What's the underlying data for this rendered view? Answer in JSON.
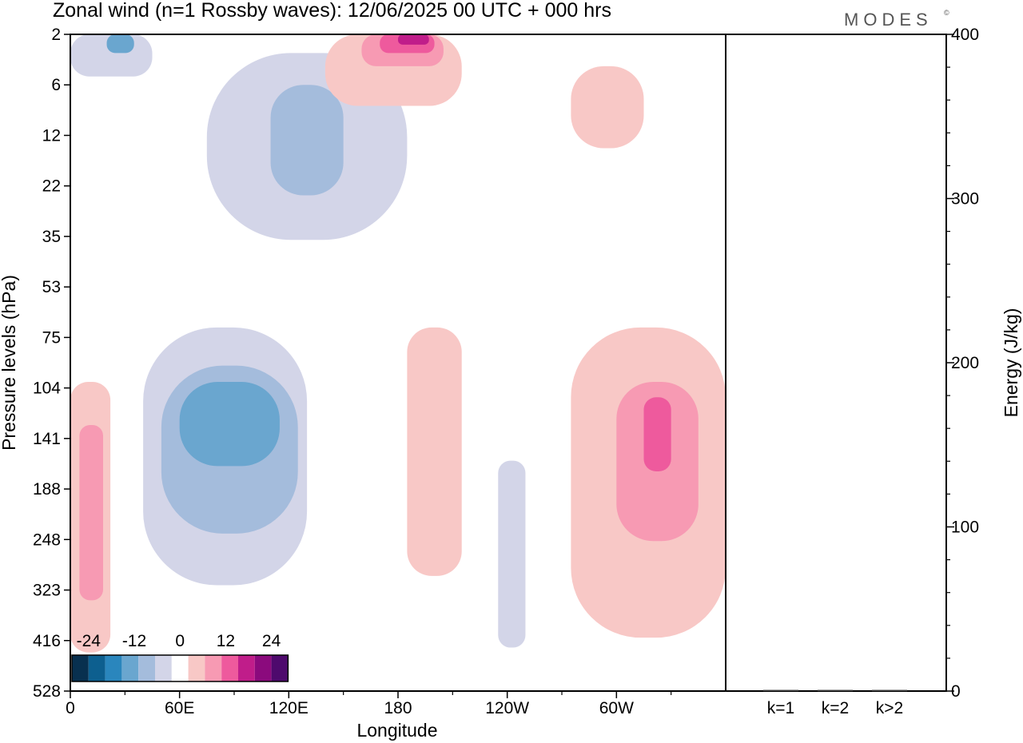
{
  "chart_data": {
    "type": "heatmap",
    "title": "Zonal wind (n=1 Rossby waves):  12/06/2025  00 UTC  + 000 hrs",
    "brand": "MODES",
    "brand_mark": "©",
    "xlabel": "Longitude",
    "ylabel": "Pressure levels (hPa)",
    "y2label": "Energy (J/kg)",
    "x_ticks": [
      "0",
      "60E",
      "120E",
      "180",
      "120W",
      "60W"
    ],
    "y_ticks": [
      "2",
      "6",
      "12",
      "22",
      "35",
      "53",
      "75",
      "104",
      "141",
      "188",
      "248",
      "323",
      "416",
      "528"
    ],
    "y2_ticks": [
      "0",
      "100",
      "200",
      "300",
      "400"
    ],
    "y2lim": [
      0,
      400
    ],
    "legend": {
      "placement": "bottom-left",
      "labels": [
        "-24",
        "-12",
        "0",
        "12",
        "24"
      ],
      "levels": [
        -30,
        -25,
        -20,
        -15,
        -10,
        -5,
        0,
        5,
        10,
        15,
        20,
        25,
        30
      ],
      "colors": [
        "#08304f",
        "#0d5f8f",
        "#2a86bd",
        "#6aa6cf",
        "#a4bcdc",
        "#d3d5e8",
        "#ffffff",
        "#f8c8c6",
        "#f79ab3",
        "#ee5a9d",
        "#c01d8a",
        "#8b0a7d",
        "#4e0a6d"
      ]
    },
    "contour_regions": [
      {
        "name": "upper-neg-west",
        "level": -5,
        "lon": [
          0,
          45
        ],
        "p": [
          2,
          5
        ]
      },
      {
        "name": "upper-neg-west-core",
        "level": -15,
        "lon": [
          20,
          35
        ],
        "p": [
          2,
          3
        ]
      },
      {
        "name": "stratos-neg-diagonal",
        "level": -5,
        "lon": [
          75,
          185
        ],
        "p": [
          3,
          36
        ]
      },
      {
        "name": "stratos-neg-diagonal-core",
        "level": -10,
        "lon": [
          110,
          150
        ],
        "p": [
          6,
          24
        ]
      },
      {
        "name": "upper-pos-180",
        "level": 5,
        "lon": [
          140,
          215
        ],
        "p": [
          2,
          8
        ]
      },
      {
        "name": "upper-pos-180-mid",
        "level": 10,
        "lon": [
          160,
          205
        ],
        "p": [
          2,
          4
        ]
      },
      {
        "name": "upper-pos-180-core",
        "level": 15,
        "lon": [
          170,
          200
        ],
        "p": [
          2,
          3
        ]
      },
      {
        "name": "upper-pos-180-peak",
        "level": 20,
        "lon": [
          180,
          197
        ],
        "p": [
          2,
          2.5
        ]
      },
      {
        "name": "stratos-pos-75w",
        "level": 5,
        "lon": [
          275,
          315
        ],
        "p": [
          4,
          14
        ]
      },
      {
        "name": "tropo-neg-60e",
        "level": -5,
        "lon": [
          40,
          130
        ],
        "p": [
          70,
          315
        ]
      },
      {
        "name": "tropo-neg-60e-mid",
        "level": -10,
        "lon": [
          50,
          125
        ],
        "p": [
          90,
          240
        ]
      },
      {
        "name": "tropo-neg-60e-core",
        "level": -15,
        "lon": [
          60,
          115
        ],
        "p": [
          100,
          165
        ]
      },
      {
        "name": "tropo-pos-0",
        "level": 5,
        "lon": [
          0,
          22
        ],
        "p": [
          100,
          440
        ]
      },
      {
        "name": "tropo-pos-0-core",
        "level": 10,
        "lon": [
          5,
          18
        ],
        "p": [
          130,
          340
        ]
      },
      {
        "name": "tropo-pos-190w",
        "level": 5,
        "lon": [
          185,
          215
        ],
        "p": [
          70,
          300
        ]
      },
      {
        "name": "tropo-neg-120w",
        "level": -5,
        "lon": [
          235,
          250
        ],
        "p": [
          160,
          430
        ]
      },
      {
        "name": "tropo-pos-75w",
        "level": 5,
        "lon": [
          275,
          360
        ],
        "p": [
          70,
          410
        ]
      },
      {
        "name": "tropo-pos-75w-mid",
        "level": 10,
        "lon": [
          300,
          345
        ],
        "p": [
          100,
          250
        ]
      },
      {
        "name": "tropo-pos-75w-core",
        "level": 15,
        "lon": [
          315,
          330
        ],
        "p": [
          110,
          170
        ]
      }
    ],
    "energy_bars": {
      "type": "bar",
      "categories": [
        "k=1",
        "k=2",
        "k>2"
      ],
      "values": [
        0.3,
        0.6,
        0.5
      ]
    }
  }
}
